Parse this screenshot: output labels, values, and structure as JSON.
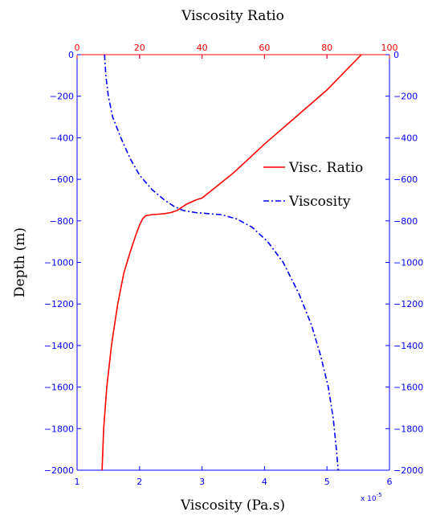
{
  "chart_data": {
    "type": "line",
    "title": "Viscosity Ratio",
    "xlabel": "Viscosity (Pa.s)",
    "ylabel": "Depth (m)",
    "x_multiplier": "x 10",
    "x_multiplier_exponent": "-5",
    "x_bottom": {
      "range": [
        1,
        6
      ],
      "ticks": [
        "1",
        "2",
        "3",
        "4",
        "5",
        "6"
      ]
    },
    "x_top": {
      "range": [
        0,
        100
      ],
      "ticks": [
        "0",
        "20",
        "40",
        "60",
        "80",
        "100"
      ]
    },
    "y": {
      "range": [
        -2000,
        0
      ],
      "ticks": [
        "0",
        "−200",
        "−400",
        "−600",
        "−800",
        "−1000",
        "−1200",
        "−1400",
        "−1600",
        "−1800",
        "−2000"
      ]
    },
    "legend_position": "right-middle",
    "series": [
      {
        "name": "Visc. Ratio",
        "axis": "top",
        "color": "#ff0000",
        "style": "solid",
        "x": [
          8,
          8.5,
          9.5,
          11,
          13,
          15,
          17,
          19,
          20,
          21,
          22,
          24,
          26,
          28,
          30,
          32,
          35,
          38,
          40,
          45,
          50,
          55,
          60,
          70,
          80,
          91
        ],
        "y": [
          -2000,
          -1800,
          -1600,
          -1400,
          -1200,
          -1050,
          -950,
          -860,
          -820,
          -790,
          -775,
          -770,
          -768,
          -765,
          -760,
          -750,
          -720,
          -700,
          -690,
          -630,
          -570,
          -500,
          -430,
          -300,
          -170,
          0
        ]
      },
      {
        "name": "Viscosity",
        "axis": "bottom",
        "color": "#0000ff",
        "style": "dashdot",
        "x": [
          1.44,
          1.46,
          1.5,
          1.57,
          1.7,
          1.85,
          2.0,
          2.2,
          2.4,
          2.55,
          2.7,
          2.9,
          3.1,
          3.3,
          3.55,
          3.8,
          4.05,
          4.3,
          4.55,
          4.75,
          4.9,
          5.02,
          5.1,
          5.15,
          5.18
        ],
        "y": [
          0,
          -100,
          -200,
          -300,
          -400,
          -500,
          -580,
          -650,
          -700,
          -730,
          -750,
          -760,
          -765,
          -770,
          -790,
          -830,
          -900,
          -1000,
          -1150,
          -1300,
          -1450,
          -1600,
          -1750,
          -1900,
          -2000
        ]
      }
    ]
  }
}
